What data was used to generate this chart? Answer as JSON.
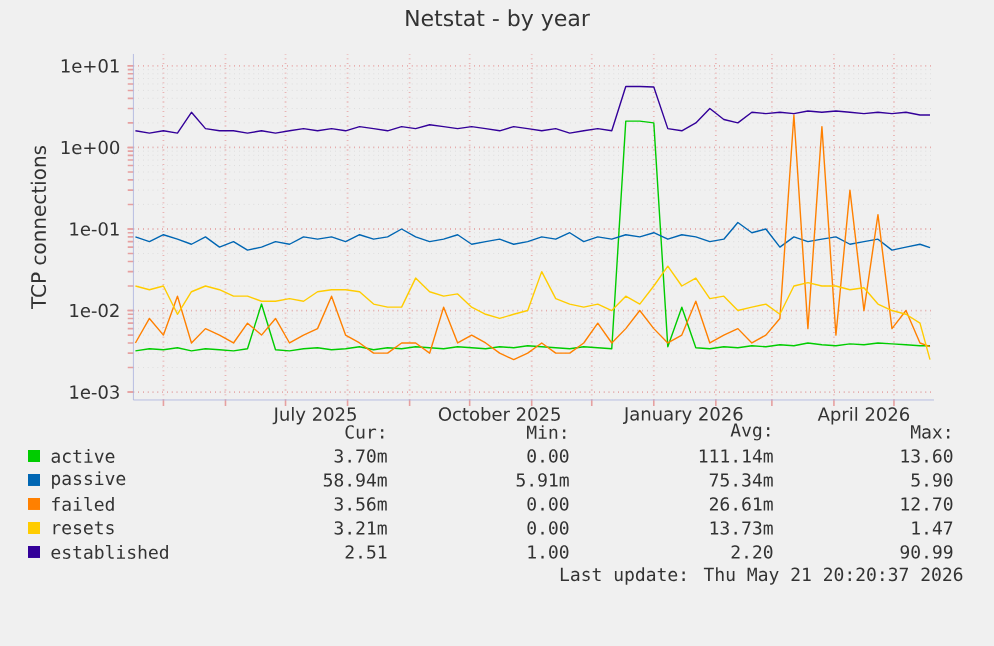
{
  "chart_data": {
    "type": "line",
    "title": "Netstat - by year",
    "ylabel": "TCP connections",
    "log": "y",
    "grid": true,
    "legend": "bottom",
    "xlim": [
      "2025-04-16",
      "2026-05-21"
    ],
    "ylim": [
      0.0008,
      14
    ],
    "xticks": [
      {
        "value": "2025-05-01",
        "label": null
      },
      {
        "value": "2025-06-01",
        "label": null
      },
      {
        "value": "2025-07-01",
        "label": null
      },
      {
        "value": "2025-08-01",
        "label": null
      },
      {
        "value": "2025-09-01",
        "label": null
      },
      {
        "value": "2025-10-01",
        "label": null
      },
      {
        "value": "2025-11-01",
        "label": null
      },
      {
        "value": "2025-12-01",
        "label": null
      },
      {
        "value": "2026-01-01",
        "label": null
      },
      {
        "value": "2026-02-01",
        "label": null
      },
      {
        "value": "2026-03-01",
        "label": null
      },
      {
        "value": "2026-04-01",
        "label": null
      },
      {
        "value": "2026-05-01",
        "label": null
      },
      {
        "value": "2025-07-16",
        "label": "July 2025"
      },
      {
        "value": "2025-10-16",
        "label": "October 2025"
      },
      {
        "value": "2026-01-16",
        "label": "January 2026"
      },
      {
        "value": "2026-04-16",
        "label": "April 2026"
      }
    ],
    "yticks": [
      {
        "value": 0.001,
        "label": "1e-03"
      },
      {
        "value": 0.01,
        "label": "1e-02"
      },
      {
        "value": 0.1,
        "label": "1e-01"
      },
      {
        "value": 1,
        "label": "1e+00"
      },
      {
        "value": 10,
        "label": "1e+01"
      }
    ],
    "x": [
      "2025-04-17",
      "2025-04-24",
      "2025-05-01",
      "2025-05-08",
      "2025-05-15",
      "2025-05-22",
      "2025-05-29",
      "2025-06-05",
      "2025-06-12",
      "2025-06-19",
      "2025-06-26",
      "2025-07-03",
      "2025-07-10",
      "2025-07-17",
      "2025-07-24",
      "2025-07-31",
      "2025-08-07",
      "2025-08-14",
      "2025-08-21",
      "2025-08-28",
      "2025-09-04",
      "2025-09-11",
      "2025-09-18",
      "2025-09-25",
      "2025-10-02",
      "2025-10-09",
      "2025-10-16",
      "2025-10-23",
      "2025-10-30",
      "2025-11-06",
      "2025-11-13",
      "2025-11-20",
      "2025-11-27",
      "2025-12-04",
      "2025-12-11",
      "2025-12-18",
      "2025-12-25",
      "2026-01-01",
      "2026-01-08",
      "2026-01-15",
      "2026-01-22",
      "2026-01-29",
      "2026-02-05",
      "2026-02-12",
      "2026-02-19",
      "2026-02-26",
      "2026-03-05",
      "2026-03-12",
      "2026-03-19",
      "2026-03-26",
      "2026-04-02",
      "2026-04-09",
      "2026-04-16",
      "2026-04-23",
      "2026-04-30",
      "2026-05-07",
      "2026-05-14",
      "2026-05-19"
    ],
    "series": [
      {
        "name": "active",
        "color": "#00cc00",
        "values": [
          0.0032,
          0.0034,
          0.0033,
          0.0035,
          0.0032,
          0.0034,
          0.0033,
          0.0032,
          0.0034,
          0.012,
          0.0033,
          0.0032,
          0.0034,
          0.0035,
          0.0033,
          0.0034,
          0.0036,
          0.0033,
          0.0035,
          0.0034,
          0.0036,
          0.0035,
          0.0034,
          0.0036,
          0.0035,
          0.0034,
          0.0036,
          0.0035,
          0.0037,
          0.0036,
          0.0035,
          0.0034,
          0.0036,
          0.0035,
          0.0034,
          2.1,
          2.1,
          2.0,
          0.0036,
          0.011,
          0.0035,
          0.0034,
          0.0036,
          0.0035,
          0.0037,
          0.0036,
          0.0038,
          0.0037,
          0.004,
          0.0038,
          0.0037,
          0.0039,
          0.0038,
          0.004,
          0.0039,
          0.0038,
          0.0037,
          0.0037
        ]
      },
      {
        "name": "passive",
        "color": "#0066b3",
        "values": [
          0.08,
          0.07,
          0.085,
          0.075,
          0.065,
          0.08,
          0.06,
          0.07,
          0.055,
          0.06,
          0.07,
          0.065,
          0.08,
          0.075,
          0.08,
          0.07,
          0.085,
          0.075,
          0.08,
          0.1,
          0.08,
          0.07,
          0.075,
          0.085,
          0.065,
          0.07,
          0.075,
          0.065,
          0.07,
          0.08,
          0.075,
          0.09,
          0.07,
          0.08,
          0.075,
          0.085,
          0.08,
          0.09,
          0.075,
          0.085,
          0.08,
          0.07,
          0.075,
          0.12,
          0.09,
          0.1,
          0.06,
          0.08,
          0.07,
          0.075,
          0.08,
          0.065,
          0.07,
          0.075,
          0.055,
          0.06,
          0.065,
          0.059
        ]
      },
      {
        "name": "failed",
        "color": "#ff8000",
        "values": [
          0.004,
          0.008,
          0.005,
          0.015,
          0.004,
          0.006,
          0.005,
          0.004,
          0.007,
          0.005,
          0.008,
          0.004,
          0.005,
          0.006,
          0.015,
          0.005,
          0.004,
          0.003,
          0.003,
          0.004,
          0.004,
          0.003,
          0.011,
          0.004,
          0.005,
          0.004,
          0.003,
          0.0025,
          0.003,
          0.004,
          0.003,
          0.003,
          0.004,
          0.007,
          0.004,
          0.006,
          0.01,
          0.006,
          0.004,
          0.005,
          0.013,
          0.004,
          0.005,
          0.006,
          0.004,
          0.005,
          0.008,
          2.5,
          0.006,
          1.8,
          0.005,
          0.3,
          0.01,
          0.15,
          0.006,
          0.01,
          0.004,
          0.0036
        ]
      },
      {
        "name": "resets",
        "color": "#ffcc00",
        "values": [
          0.02,
          0.018,
          0.02,
          0.009,
          0.017,
          0.02,
          0.018,
          0.015,
          0.015,
          0.013,
          0.013,
          0.014,
          0.013,
          0.017,
          0.018,
          0.018,
          0.017,
          0.012,
          0.011,
          0.011,
          0.025,
          0.017,
          0.015,
          0.016,
          0.011,
          0.009,
          0.008,
          0.009,
          0.01,
          0.03,
          0.014,
          0.012,
          0.011,
          0.012,
          0.01,
          0.015,
          0.012,
          0.02,
          0.035,
          0.02,
          0.025,
          0.014,
          0.015,
          0.01,
          0.011,
          0.012,
          0.009,
          0.02,
          0.022,
          0.02,
          0.02,
          0.018,
          0.019,
          0.012,
          0.01,
          0.009,
          0.007,
          0.0025
        ]
      },
      {
        "name": "established",
        "color": "#330099",
        "values": [
          1.6,
          1.5,
          1.6,
          1.5,
          2.7,
          1.7,
          1.6,
          1.6,
          1.5,
          1.6,
          1.5,
          1.6,
          1.7,
          1.6,
          1.7,
          1.6,
          1.8,
          1.7,
          1.6,
          1.8,
          1.7,
          1.9,
          1.8,
          1.7,
          1.8,
          1.7,
          1.6,
          1.8,
          1.7,
          1.6,
          1.7,
          1.5,
          1.6,
          1.7,
          1.6,
          5.6,
          5.6,
          5.5,
          1.7,
          1.6,
          2.0,
          3.0,
          2.2,
          2.0,
          2.7,
          2.6,
          2.7,
          2.6,
          2.8,
          2.7,
          2.8,
          2.7,
          2.6,
          2.7,
          2.6,
          2.7,
          2.5,
          2.5
        ]
      }
    ],
    "annotations": [
      "Cur:",
      "Min:",
      "Avg:",
      "Max:",
      "3.70m",
      "0.00",
      "111.14m",
      "13.60",
      "58.94m",
      "5.91m",
      "75.34m",
      "5.90",
      "3.56m",
      "0.00",
      "26.61m",
      "12.70",
      "3.21m",
      "0.00",
      "13.73m",
      "1.47",
      "2.51",
      "1.00",
      "2.20",
      "90.99",
      "Last update: Thu May 21 20:20:37 2026"
    ]
  }
}
